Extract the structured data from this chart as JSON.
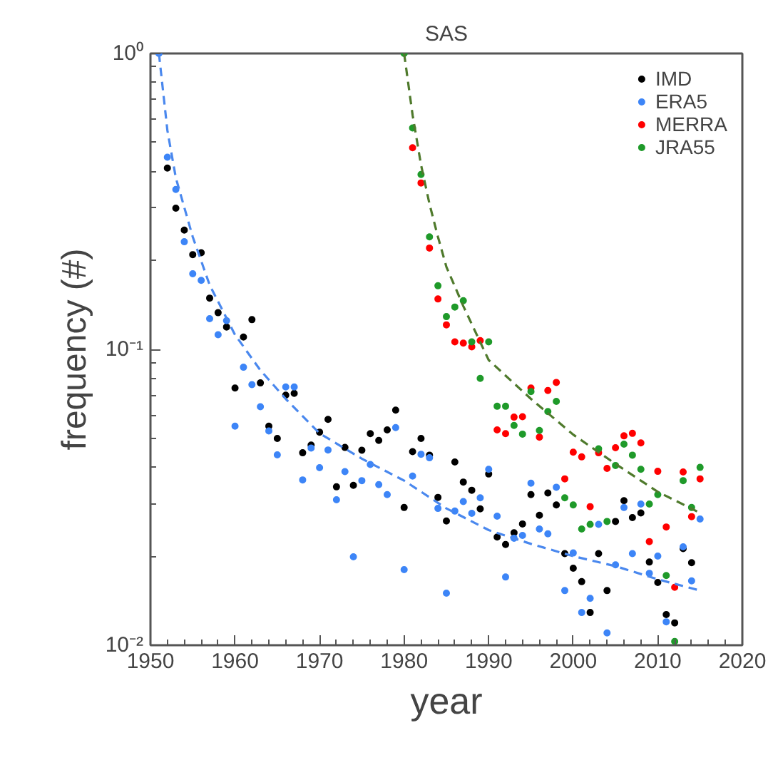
{
  "chart_data": {
    "type": "scatter",
    "title": "SAS",
    "xlabel": "year",
    "ylabel": "frequency (#)",
    "log": "y",
    "marker": "circle",
    "legend": "top right",
    "xlim": [
      1950,
      2020
    ],
    "ylim": [
      0.01,
      1
    ],
    "xticks": [
      1950,
      1960,
      1970,
      1980,
      1990,
      2000,
      2010,
      2020,
      {
        "value": 1952,
        "label": null
      },
      {
        "value": 1954,
        "label": null
      },
      {
        "value": 1956,
        "label": null
      },
      {
        "value": 1958,
        "label": null
      },
      {
        "value": 1962,
        "label": null
      },
      {
        "value": 1964,
        "label": null
      },
      {
        "value": 1966,
        "label": null
      },
      {
        "value": 1968,
        "label": null
      },
      {
        "value": 1972,
        "label": null
      },
      {
        "value": 1974,
        "label": null
      },
      {
        "value": 1976,
        "label": null
      },
      {
        "value": 1978,
        "label": null
      },
      {
        "value": 1982,
        "label": null
      },
      {
        "value": 1984,
        "label": null
      },
      {
        "value": 1986,
        "label": null
      },
      {
        "value": 1988,
        "label": null
      },
      {
        "value": 1992,
        "label": null
      },
      {
        "value": 1994,
        "label": null
      },
      {
        "value": 1996,
        "label": null
      },
      {
        "value": 1998,
        "label": null
      },
      {
        "value": 2002,
        "label": null
      },
      {
        "value": 2004,
        "label": null
      },
      {
        "value": 2006,
        "label": null
      },
      {
        "value": 2008,
        "label": null
      },
      {
        "value": 2012,
        "label": null
      },
      {
        "value": 2014,
        "label": null
      },
      {
        "value": 2016,
        "label": null
      },
      {
        "value": 2018,
        "label": null
      }
    ],
    "yticks": [
      {
        "value": 0.01,
        "label": "10⁻²"
      },
      {
        "value": 0.1,
        "label": "10⁻¹"
      },
      {
        "value": 1,
        "label": "10⁰"
      },
      {
        "value": 0.02,
        "label": null
      },
      {
        "value": 0.03,
        "label": null
      },
      {
        "value": 0.04,
        "label": null
      },
      {
        "value": 0.05,
        "label": null
      },
      {
        "value": 0.06,
        "label": null
      },
      {
        "value": 0.07,
        "label": null
      },
      {
        "value": 0.08,
        "label": null
      },
      {
        "value": 0.09,
        "label": null
      },
      {
        "value": 0.2,
        "label": null
      },
      {
        "value": 0.3,
        "label": null
      },
      {
        "value": 0.4,
        "label": null
      },
      {
        "value": 0.5,
        "label": null
      },
      {
        "value": 0.6,
        "label": null
      },
      {
        "value": 0.7,
        "label": null
      },
      {
        "value": 0.8,
        "label": null
      },
      {
        "value": 0.9,
        "label": null
      }
    ],
    "series": [
      {
        "name": "IMD",
        "color": "#000000",
        "x": [
          1952,
          1953,
          1954,
          1955,
          1956,
          1957,
          1958,
          1959,
          1960,
          1961,
          1962,
          1963,
          1964,
          1965,
          1966,
          1967,
          1968,
          1969,
          1970,
          1971,
          1972,
          1973,
          1974,
          1975,
          1976,
          1977,
          1978,
          1979,
          1980,
          1981,
          1982,
          1983,
          1984,
          1985,
          1986,
          1987,
          1988,
          1989,
          1990,
          1991,
          1992,
          1993,
          1994,
          1995,
          1996,
          1997,
          1998,
          1999,
          2000,
          2001,
          2002,
          2003,
          2004,
          2005,
          2006,
          2007,
          2008,
          2009,
          2010,
          2011,
          2012,
          2013,
          2014
        ],
        "values": [
          0.41,
          0.3,
          0.253,
          0.209,
          0.212,
          0.149,
          0.133,
          0.119,
          0.074,
          0.11,
          0.126,
          0.077,
          0.055,
          0.05,
          0.07,
          0.071,
          0.0447,
          0.0475,
          0.0525,
          0.058,
          0.0343,
          0.0466,
          0.0347,
          0.0456,
          0.0519,
          0.0492,
          0.0534,
          0.0623,
          0.0292,
          0.0451,
          0.05,
          0.0439,
          0.0316,
          0.0263,
          0.0416,
          0.0356,
          0.0334,
          0.0289,
          0.0379,
          0.0232,
          0.0219,
          0.024,
          0.0257,
          0.0323,
          0.0275,
          0.0327,
          0.0298,
          0.0204,
          0.0182,
          0.0164,
          0.0129,
          0.0204,
          0.0153,
          0.0262,
          0.0308,
          0.027,
          0.028,
          0.0191,
          0.0163,
          0.0127,
          0.0119,
          0.0212,
          0.019
        ]
      },
      {
        "name": "ERA5",
        "color": "#3d85f7",
        "x": [
          1951,
          1952,
          1953,
          1954,
          1955,
          1956,
          1957,
          1958,
          1959,
          1960,
          1961,
          1962,
          1963,
          1964,
          1965,
          1966,
          1967,
          1968,
          1969,
          1970,
          1971,
          1972,
          1973,
          1974,
          1975,
          1976,
          1977,
          1978,
          1979,
          1980,
          1981,
          1982,
          1983,
          1984,
          1985,
          1986,
          1987,
          1988,
          1989,
          1990,
          1991,
          1992,
          1993,
          1994,
          1995,
          1996,
          1997,
          1998,
          1999,
          2000,
          2001,
          2002,
          2003,
          2004,
          2005,
          2006,
          2007,
          2008,
          2009,
          2010,
          2011,
          2013,
          2014,
          2015
        ],
        "values": [
          1.0,
          0.446,
          0.347,
          0.231,
          0.18,
          0.171,
          0.127,
          0.112,
          0.125,
          0.055,
          0.087,
          0.076,
          0.064,
          0.053,
          0.044,
          0.0746,
          0.0746,
          0.0362,
          0.0464,
          0.0398,
          0.0457,
          0.031,
          0.0386,
          0.0199,
          0.036,
          0.0408,
          0.0349,
          0.0323,
          0.0544,
          0.018,
          0.0373,
          0.0442,
          0.043,
          0.029,
          0.015,
          0.0284,
          0.0306,
          0.0279,
          0.0315,
          0.0393,
          0.0273,
          0.017,
          0.023,
          0.0235,
          0.0353,
          0.0247,
          0.0238,
          0.0342,
          0.0153,
          0.0205,
          0.0129,
          0.0144,
          0.0256,
          0.011,
          0.0187,
          0.0292,
          0.0204,
          0.03,
          0.0175,
          0.02,
          0.012,
          0.0215,
          0.0165,
          0.0267
        ]
      },
      {
        "name": "MERRA",
        "color": "#ff0000",
        "x": [
          1981,
          1982,
          1983,
          1984,
          1985,
          1986,
          1987,
          1988,
          1989,
          1991,
          1992,
          1993,
          1994,
          1995,
          1996,
          1997,
          1998,
          1999,
          2000,
          2001,
          2002,
          2003,
          2004,
          2005,
          2006,
          2007,
          2008,
          2009,
          2010,
          2011,
          2012,
          2013,
          2014,
          2015
        ],
        "values": [
          0.48,
          0.365,
          0.22,
          0.148,
          0.121,
          0.106,
          0.105,
          0.102,
          0.107,
          0.0534,
          0.0519,
          0.059,
          0.0592,
          0.074,
          0.0505,
          0.0726,
          0.0773,
          0.0365,
          0.0449,
          0.0433,
          0.0294,
          0.0447,
          0.0396,
          0.0465,
          0.051,
          0.052,
          0.0483,
          0.0224,
          0.0387,
          0.0251,
          0.0157,
          0.0385,
          0.0272,
          0.0365
        ]
      },
      {
        "name": "JRA55",
        "color": "#1f9a2a",
        "x": [
          1980,
          1981,
          1982,
          1983,
          1984,
          1985,
          1986,
          1987,
          1988,
          1989,
          1990,
          1991,
          1992,
          1993,
          1994,
          1995,
          1996,
          1997,
          1998,
          1999,
          2000,
          2001,
          2002,
          2003,
          2004,
          2005,
          2006,
          2007,
          2008,
          2009,
          2010,
          2011,
          2012,
          2013,
          2014,
          2015
        ],
        "values": [
          1.0,
          0.56,
          0.39,
          0.24,
          0.164,
          0.129,
          0.139,
          0.146,
          0.106,
          0.0798,
          0.106,
          0.0642,
          0.0642,
          0.0553,
          0.0517,
          0.072,
          0.0532,
          0.0616,
          0.0667,
          0.0315,
          0.0298,
          0.0247,
          0.0256,
          0.0461,
          0.0262,
          0.0405,
          0.0478,
          0.0439,
          0.0393,
          0.03,
          0.0323,
          0.0172,
          0.0103,
          0.036,
          0.0292,
          0.0399
        ]
      },
      {
        "type": "line",
        "line_style": "dashed",
        "marker": "none",
        "color": "#4a88ee",
        "x": [
          1951,
          1952,
          1953,
          1955,
          1957,
          1960,
          1963,
          1966,
          1970,
          1975,
          1980,
          1985,
          1990,
          1995,
          2000,
          2005,
          2010,
          2015
        ],
        "values": [
          1.0,
          0.55,
          0.38,
          0.24,
          0.165,
          0.112,
          0.085,
          0.068,
          0.052,
          0.0427,
          0.036,
          0.029,
          0.0245,
          0.022,
          0.02,
          0.0185,
          0.0167,
          0.0153
        ]
      },
      {
        "type": "line",
        "line_style": "dashed",
        "marker": "none",
        "color": "#4f7a2c",
        "x": [
          1980,
          1981,
          1982,
          1983,
          1984,
          1985,
          1987,
          1990,
          1995,
          2000,
          2005,
          2010,
          2015
        ],
        "values": [
          1.0,
          0.62,
          0.42,
          0.31,
          0.24,
          0.19,
          0.14,
          0.092,
          0.068,
          0.0515,
          0.041,
          0.033,
          0.028
        ]
      }
    ]
  }
}
